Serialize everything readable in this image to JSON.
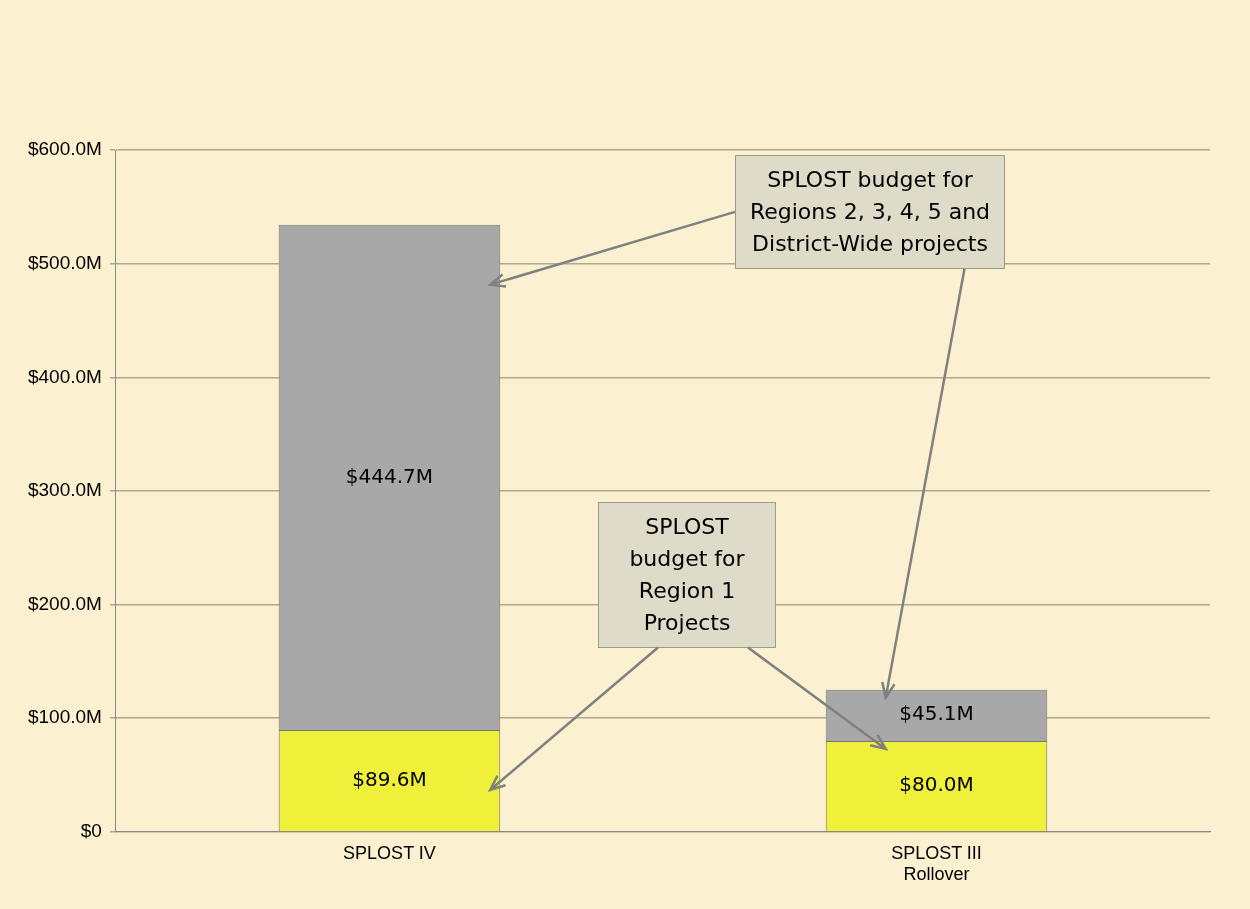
{
  "chart_data": {
    "type": "bar",
    "stacked": true,
    "categories": [
      "SPLOST IV",
      "SPLOST III Rollover"
    ],
    "series": [
      {
        "color": "#eef03a",
        "values": [
          89.6,
          80.0
        ],
        "value_labels": [
          "$89.6M",
          "$80.0M"
        ]
      },
      {
        "color": "#a8a8a8",
        "values": [
          444.7,
          45.1
        ],
        "value_labels": [
          "$444.7M",
          "$45.1M"
        ]
      }
    ],
    "ylim": [
      0,
      600
    ],
    "yticks": [
      {
        "value": 0,
        "label": "$0"
      },
      {
        "value": 100,
        "label": "$100.0M"
      },
      {
        "value": 200,
        "label": "$200.0M"
      },
      {
        "value": 300,
        "label": "$300.0M"
      },
      {
        "value": 400,
        "label": "$400.0M"
      },
      {
        "value": 500,
        "label": "$500.0M"
      },
      {
        "value": 600,
        "label": "$600.0M"
      }
    ],
    "grid": "y",
    "legend": false,
    "annotations": [
      "SPLOST budget for Regions 2, 3, 4, 5 and District-Wide projects",
      "SPLOST budget for Region 1 Projects"
    ]
  }
}
